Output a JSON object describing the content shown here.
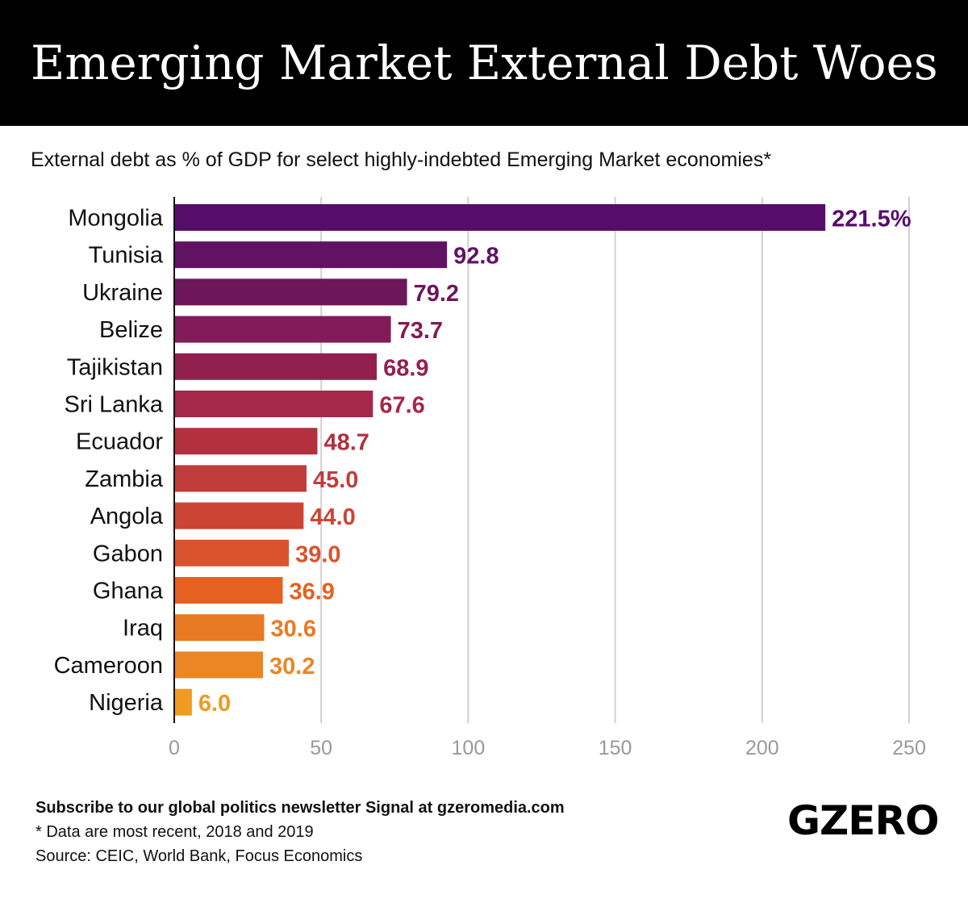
{
  "header": {
    "title": "Emerging Market External Debt Woes"
  },
  "chart_data": {
    "type": "bar",
    "orientation": "horizontal",
    "subtitle": "External debt as % of GDP for select highly-indebted Emerging Market economies*",
    "categories": [
      "Mongolia",
      "Tunisia",
      "Ukraine",
      "Belize",
      "Tajikistan",
      "Sri Lanka",
      "Ecuador",
      "Zambia",
      "Angola",
      "Gabon",
      "Ghana",
      "Iraq",
      "Cameroon",
      "Nigeria"
    ],
    "values": [
      221.5,
      92.8,
      79.2,
      73.7,
      68.9,
      67.6,
      48.7,
      45.0,
      44.0,
      39.0,
      36.9,
      30.6,
      30.2,
      6.0
    ],
    "value_labels": [
      "221.5%",
      "92.8",
      "79.2",
      "73.7",
      "68.9",
      "67.6",
      "48.7",
      "45.0",
      "44.0",
      "39.0",
      "36.9",
      "30.6",
      "30.2",
      "6.0"
    ],
    "colors": [
      "#560d6a",
      "#621263",
      "#6e165c",
      "#821b57",
      "#92204f",
      "#a52749",
      "#b3303f",
      "#c03d3c",
      "#cc4534",
      "#d9542c",
      "#e46122",
      "#e87a23",
      "#ea8624",
      "#ee9a23"
    ],
    "xlim": [
      0,
      250
    ],
    "xticks": [
      0,
      50,
      100,
      150,
      200,
      250
    ],
    "xtick_labels": [
      "0",
      "50",
      "100",
      "150",
      "200",
      "250"
    ],
    "grid": true
  },
  "footer": {
    "subscribe": "Subscribe to our global politics newsletter Signal at gzeromedia.com",
    "note": "* Data are most recent, 2018 and 2019",
    "source": "Source: CEIC, World Bank, Focus Economics",
    "logo": "GZERO"
  }
}
